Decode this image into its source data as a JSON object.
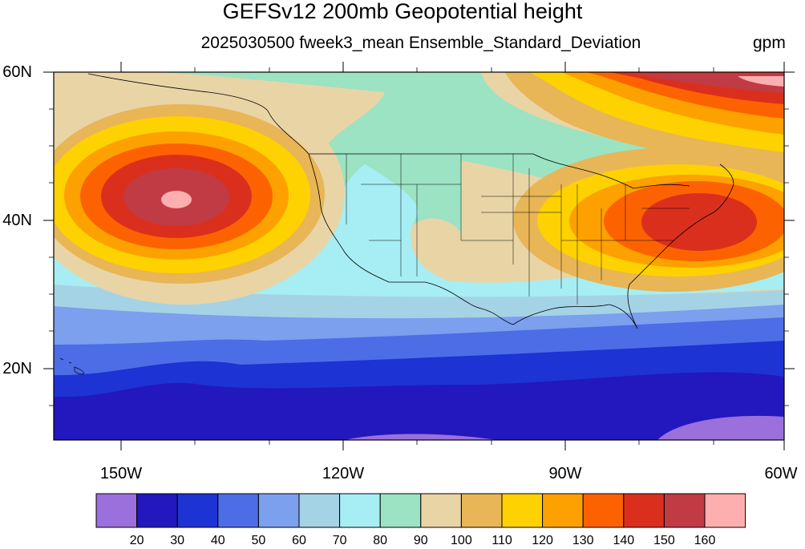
{
  "title": "GEFSv12 200mb Geopotential height",
  "subtitle": "2025030500 fweek3_mean Ensemble_Standard_Deviation",
  "units": "gpm",
  "map": {
    "lat_labels": [
      "60N",
      "40N",
      "20N"
    ],
    "lon_labels": [
      "150W",
      "120W",
      "90W",
      "60W"
    ]
  },
  "colorbar": {
    "colors": [
      "#9b6fdc",
      "#2317be",
      "#1d33d4",
      "#4d6de6",
      "#7c9fee",
      "#a5d3e6",
      "#a6eef4",
      "#9be3c3",
      "#e9d4a6",
      "#e8b656",
      "#fdd200",
      "#fda100",
      "#fc6200",
      "#db2f1e",
      "#c13b45",
      "#fdafaf"
    ],
    "labels": [
      "20",
      "30",
      "40",
      "50",
      "60",
      "70",
      "80",
      "90",
      "100",
      "110",
      "120",
      "130",
      "140",
      "150",
      "160"
    ]
  }
}
